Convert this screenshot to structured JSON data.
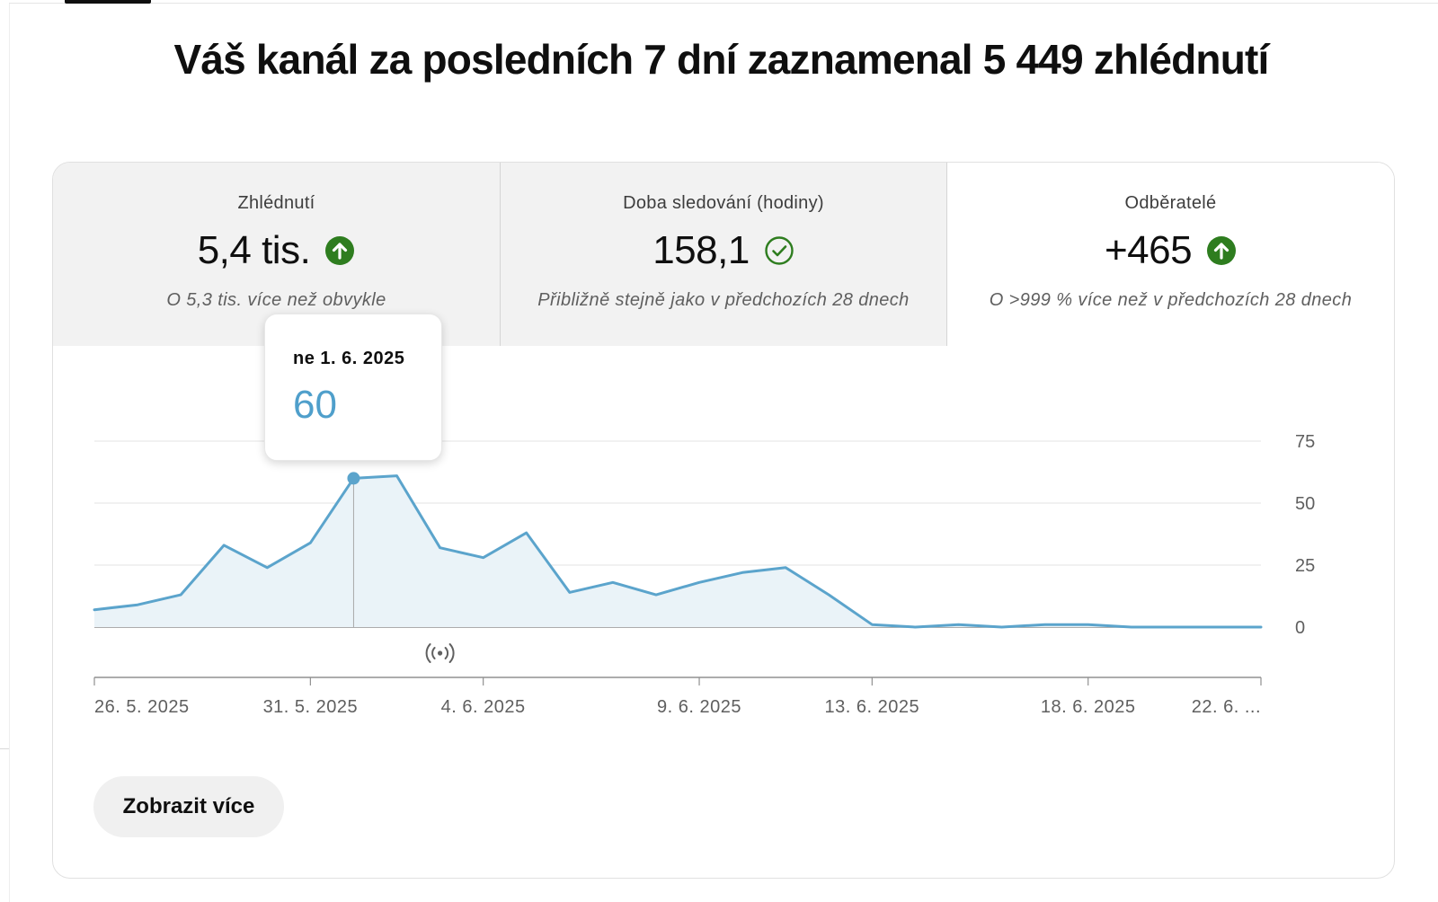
{
  "headline": "Váš kanál za posledních 7 dní zaznamenal 5 449 zhlédnutí",
  "metrics": [
    {
      "label": "Zhlédnutí",
      "value": "5,4 tis.",
      "status": "up-arrow",
      "note": "O 5,3 tis. více než obvykle"
    },
    {
      "label": "Doba sledování (hodiny)",
      "value": "158,1",
      "status": "check",
      "note": "Přibližně stejně jako v předchozích 28 dnech"
    },
    {
      "label": "Odběratelé",
      "value": "+465",
      "status": "up-arrow",
      "note": "O >999 % více než v předchozích 28 dnech"
    }
  ],
  "colors": {
    "up": "#2e7d1f",
    "check": "#2e7d1f",
    "line": "#5ba4cc",
    "area": "#eaf3f8",
    "tooltip_value": "#4f9fcb"
  },
  "tooltip": {
    "date": "ne 1. 6. 2025",
    "value": "60"
  },
  "live_marker_icon": "live-broadcast-icon",
  "chart_data": {
    "type": "area",
    "x": [
      "2025-05-26",
      "2025-05-27",
      "2025-05-28",
      "2025-05-29",
      "2025-05-30",
      "2025-05-31",
      "2025-06-01",
      "2025-06-02",
      "2025-06-03",
      "2025-06-04",
      "2025-06-05",
      "2025-06-06",
      "2025-06-07",
      "2025-06-08",
      "2025-06-09",
      "2025-06-10",
      "2025-06-11",
      "2025-06-12",
      "2025-06-13",
      "2025-06-14",
      "2025-06-15",
      "2025-06-16",
      "2025-06-17",
      "2025-06-18",
      "2025-06-19",
      "2025-06-20",
      "2025-06-21",
      "2025-06-22"
    ],
    "values": [
      7,
      9,
      13,
      33,
      24,
      34,
      60,
      61,
      32,
      28,
      38,
      14,
      18,
      13,
      18,
      22,
      24,
      13,
      1,
      0,
      1,
      0,
      1,
      1,
      0,
      0,
      0,
      0
    ],
    "x_ticks": [
      {
        "index": 0,
        "label": "26. 5. 2025"
      },
      {
        "index": 5,
        "label": "31. 5. 2025"
      },
      {
        "index": 9,
        "label": "4. 6. 2025"
      },
      {
        "index": 14,
        "label": "9. 6. 2025"
      },
      {
        "index": 18,
        "label": "13. 6. 2025"
      },
      {
        "index": 23,
        "label": "18. 6. 2025"
      },
      {
        "index": 27,
        "label": "22. 6. ..."
      }
    ],
    "y_ticks": [
      0,
      25,
      50,
      75
    ],
    "ylim": [
      0,
      75
    ],
    "highlight_index": 6,
    "marker_index": 8,
    "grid": true
  },
  "more_button": "Zobrazit více"
}
